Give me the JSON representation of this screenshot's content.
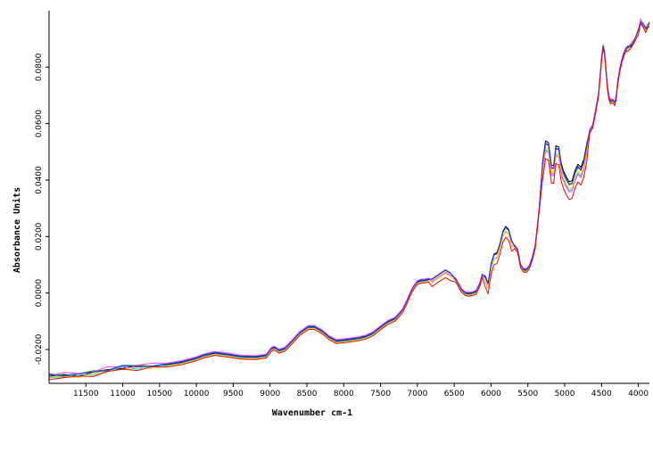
{
  "chart_data": {
    "type": "line",
    "xlabel": "Wavenumber cm-1",
    "ylabel": "Absorbance Units",
    "xlim": [
      12000,
      3850
    ],
    "x_reversed": true,
    "ylim": [
      -0.032,
      0.1
    ],
    "x_ticks": [
      {
        "value": 11500,
        "label": "11500"
      },
      {
        "value": 11000,
        "label": "11000"
      },
      {
        "value": 10500,
        "label": "10500"
      },
      {
        "value": 10000,
        "label": "10000"
      },
      {
        "value": 9500,
        "label": "9500"
      },
      {
        "value": 9000,
        "label": "9000"
      },
      {
        "value": 8500,
        "label": "8500"
      },
      {
        "value": 8000,
        "label": "8000"
      },
      {
        "value": 7500,
        "label": "7500"
      },
      {
        "value": 7000,
        "label": "7000"
      },
      {
        "value": 6500,
        "label": "6500"
      },
      {
        "value": 6000,
        "label": "6000"
      },
      {
        "value": 5500,
        "label": "5500"
      },
      {
        "value": 5000,
        "label": "5000"
      },
      {
        "value": 4500,
        "label": "4500"
      },
      {
        "value": 4000,
        "label": "4000"
      }
    ],
    "y_ticks": [
      {
        "value": -0.02,
        "label": "-0.0200"
      },
      {
        "value": 0.0,
        "label": "0.0000"
      },
      {
        "value": 0.02,
        "label": "0.0200"
      },
      {
        "value": 0.04,
        "label": "0.0400"
      },
      {
        "value": 0.06,
        "label": "0.0600"
      },
      {
        "value": 0.08,
        "label": "0.0800"
      }
    ],
    "grid": false,
    "legend": "none",
    "base_spectrum": {
      "x": [
        12000,
        11800,
        11600,
        11400,
        11200,
        11000,
        10800,
        10600,
        10400,
        10200,
        10000,
        9900,
        9750,
        9600,
        9400,
        9200,
        9050,
        8980,
        8940,
        8880,
        8800,
        8700,
        8600,
        8480,
        8400,
        8300,
        8200,
        8100,
        8000,
        7900,
        7800,
        7700,
        7600,
        7500,
        7400,
        7300,
        7200,
        7150,
        7100,
        7050,
        7000,
        6950,
        6900,
        6850,
        6800,
        6700,
        6620,
        6550,
        6480,
        6400,
        6350,
        6300,
        6250,
        6200,
        6150,
        6120,
        6080,
        6040,
        6000,
        5960,
        5920,
        5880,
        5840,
        5800,
        5760,
        5720,
        5680,
        5640,
        5600,
        5560,
        5520,
        5480,
        5440,
        5400,
        5350,
        5300,
        5260,
        5220,
        5180,
        5150,
        5120,
        5080,
        5050,
        5020,
        4980,
        4940,
        4900,
        4860,
        4820,
        4780,
        4740,
        4700,
        4660,
        4620,
        4580,
        4540,
        4500,
        4480,
        4460,
        4440,
        4420,
        4400,
        4380,
        4360,
        4340,
        4320,
        4300,
        4280,
        4250,
        4220,
        4200,
        4170,
        4150,
        4100,
        4050,
        4000,
        3970,
        3940,
        3900,
        3870,
        3850
      ],
      "y": [
        -0.0295,
        -0.0292,
        -0.029,
        -0.0283,
        -0.0272,
        -0.0263,
        -0.0262,
        -0.0258,
        -0.0254,
        -0.0246,
        -0.0232,
        -0.0222,
        -0.0213,
        -0.0218,
        -0.0226,
        -0.0228,
        -0.0222,
        -0.0198,
        -0.0194,
        -0.0205,
        -0.0198,
        -0.0172,
        -0.0143,
        -0.0121,
        -0.0121,
        -0.0135,
        -0.0157,
        -0.0171,
        -0.0168,
        -0.0165,
        -0.0161,
        -0.0155,
        -0.0143,
        -0.0122,
        -0.0103,
        -0.0091,
        -0.0062,
        -0.0035,
        -0.0004,
        0.0021,
        0.0038,
        0.0043,
        0.0044,
        0.0047,
        0.005,
        0.0068,
        0.0082,
        0.0071,
        0.0047,
        0.001,
        -0.0001,
        -0.0003,
        -0.0001,
        0.0005,
        0.0033,
        0.0063,
        0.0061,
        0.0035,
        0.0103,
        0.0138,
        0.0143,
        0.0175,
        0.0218,
        0.0236,
        0.0225,
        0.0186,
        0.0165,
        0.0152,
        0.0098,
        0.0082,
        0.0081,
        0.0093,
        0.0123,
        0.0166,
        0.0287,
        0.0465,
        0.0539,
        0.0533,
        0.0452,
        0.0452,
        0.0522,
        0.0517,
        0.0462,
        0.0435,
        0.0412,
        0.0394,
        0.0398,
        0.0435,
        0.0456,
        0.0445,
        0.0474,
        0.0529,
        0.0574,
        0.0591,
        0.0646,
        0.0705,
        0.0828,
        0.0873,
        0.0853,
        0.0792,
        0.0728,
        0.0695,
        0.0678,
        0.0682,
        0.0679,
        0.0672,
        0.0695,
        0.0748,
        0.0795,
        0.0827,
        0.0845,
        0.0862,
        0.0866,
        0.0875,
        0.0895,
        0.0928,
        0.096,
        0.095,
        0.0935,
        0.0945,
        0.0952
      ]
    },
    "series": [
      {
        "color": "#000000",
        "offset": 0.0,
        "peak_delta": 0.0
      },
      {
        "color": "#00a000",
        "offset": 0.0004,
        "peak_delta": -0.0015
      },
      {
        "color": "#00e0e0",
        "offset": -0.0003,
        "peak_delta": -0.0028
      },
      {
        "color": "#ff40ff",
        "offset": 0.0006,
        "peak_delta": -0.0042
      },
      {
        "color": "#ffd000",
        "offset": -0.0005,
        "peak_delta": -0.002
      },
      {
        "color": "#3030ff",
        "offset": 0.0002,
        "peak_delta": -0.001
      },
      {
        "color": "#ff0000",
        "offset": -0.0008,
        "peak_delta": -0.0055
      }
    ]
  }
}
